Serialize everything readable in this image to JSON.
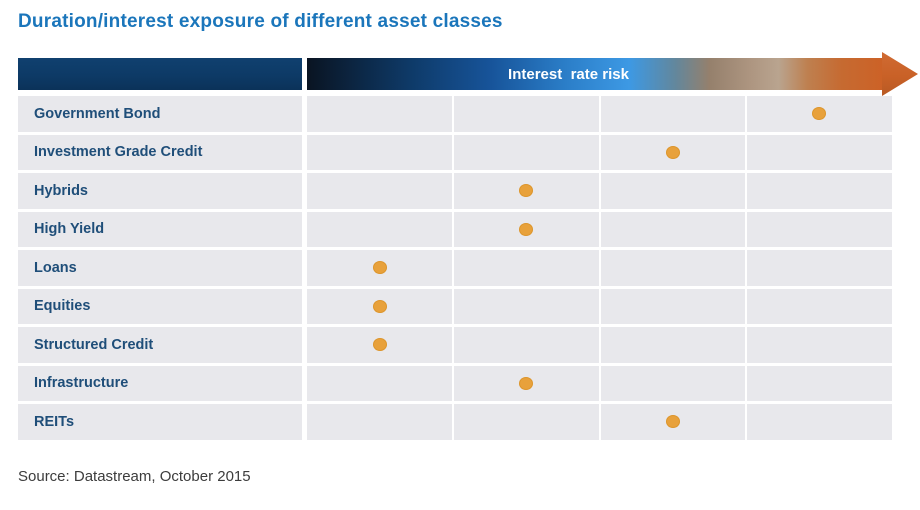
{
  "title": {
    "text": "Duration/interest exposure of different asset classes",
    "color": "#1B76BB"
  },
  "header": {
    "risk_label": "Interest  rate risk",
    "navy_block_color": "#0D3A66",
    "gradient_start_color": "#0A1422",
    "gradient_blue_color": "#3D99E4",
    "gradient_end_color": "#CC6227",
    "arrow_color": "#C96127"
  },
  "rows": [
    {
      "label": "Government Bond",
      "risk_level": 4
    },
    {
      "label": "Investment Grade Credit",
      "risk_level": 3
    },
    {
      "label": "Hybrids",
      "risk_level": 2
    },
    {
      "label": "High Yield",
      "risk_level": 2
    },
    {
      "label": "Loans",
      "risk_level": 1
    },
    {
      "label": "Equities",
      "risk_level": 1
    },
    {
      "label": "Structured Credit",
      "risk_level": 1
    },
    {
      "label": "Infrastructure",
      "risk_level": 2
    },
    {
      "label": "REITs",
      "risk_level": 3
    }
  ],
  "chart_data": {
    "type": "scatter",
    "title": "Duration/interest exposure of different asset classes",
    "xlabel": "Interest  rate risk",
    "x_scale_note": "ordinal, 4 unlabeled columns from low (left) to high (right) interest rate risk; dots placed at column centres",
    "xlim": [
      0,
      4
    ],
    "grid": "vertical column dividers only",
    "legend": "none",
    "categories": [
      "Government Bond",
      "Investment Grade Credit",
      "Hybrids",
      "High Yield",
      "Loans",
      "Equities",
      "Structured Credit",
      "Infrastructure",
      "REITs"
    ],
    "values": [
      4,
      3,
      2,
      2,
      1,
      1,
      1,
      2,
      3
    ],
    "dot_color": "#E8A13B",
    "row_background_color": "#E8E8EC",
    "label_color": "#1F4E79"
  },
  "source": {
    "text": "Source: Datastream, October 2015"
  }
}
